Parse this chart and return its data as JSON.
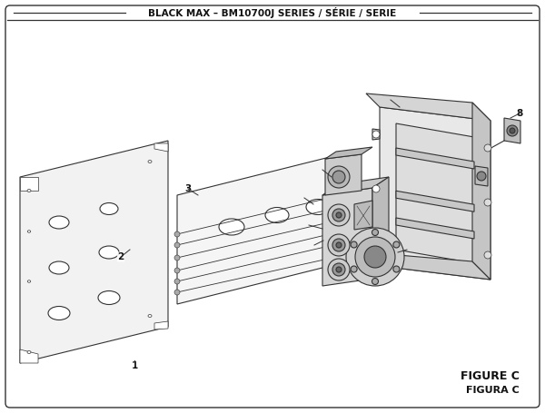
{
  "title": "BLACK MAX – BM10700J SERIES / SÉRIE / SERIE",
  "figure_label": "FIGURE C",
  "figura_label": "FIGURA C",
  "bg_color": "#ffffff",
  "line_color": "#333333",
  "text_color": "#111111",
  "title_fontsize": 7.5,
  "label_fontsize": 7.5,
  "figure_label_fontsize": 9
}
